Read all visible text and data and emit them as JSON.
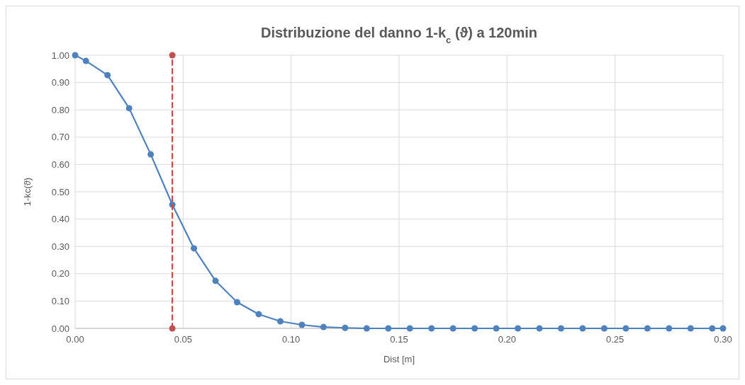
{
  "chart_data": {
    "type": "line",
    "title": "Distribuzione del danno 1-k$_{c}$ (ϑ) a 120min",
    "xlabel": "Dist [m]",
    "ylabel": "1-kc(ϑ)",
    "xlim": [
      0,
      0.3
    ],
    "xticks": [
      {
        "value": 0,
        "label": "0.00"
      },
      {
        "value": 0.05,
        "label": "0.05"
      },
      {
        "value": 0.1,
        "label": "0.10"
      },
      {
        "value": 0.15,
        "label": "0.15"
      },
      {
        "value": 0.2,
        "label": "0.20"
      },
      {
        "value": 0.25,
        "label": "0.25"
      },
      {
        "value": 0.3,
        "label": "0.30"
      }
    ],
    "ylim": [
      0,
      1
    ],
    "yticks": [
      {
        "value": 0,
        "label": "0.00"
      },
      {
        "value": 0.1,
        "label": "0.10"
      },
      {
        "value": 0.2,
        "label": "0.20"
      },
      {
        "value": 0.3,
        "label": "0.30"
      },
      {
        "value": 0.4,
        "label": "0.40"
      },
      {
        "value": 0.5,
        "label": "0.50"
      },
      {
        "value": 0.6,
        "label": "0.60"
      },
      {
        "value": 0.7,
        "label": "0.70"
      },
      {
        "value": 0.8,
        "label": "0.80"
      },
      {
        "value": 0.9,
        "label": "0.90"
      },
      {
        "value": 1,
        "label": "1.00"
      }
    ],
    "grid": true,
    "marker": "circle",
    "series": [
      {
        "color": "#4f81bd",
        "line_style": "solid",
        "x": [
          0,
          0.005,
          0.015,
          0.025,
          0.035,
          0.045,
          0.055,
          0.065,
          0.075,
          0.085,
          0.095,
          0.105,
          0.115,
          0.125,
          0.135,
          0.145,
          0.155,
          0.165,
          0.175,
          0.185,
          0.195,
          0.205,
          0.215,
          0.225,
          0.235,
          0.245,
          0.255,
          0.265,
          0.275,
          0.285,
          0.295,
          0.3
        ],
        "values": [
          1,
          0.979,
          0.927,
          0.806,
          0.637,
          0.453,
          0.293,
          0.174,
          0.096,
          0.052,
          0.026,
          0.013,
          0.005,
          0.002,
          0,
          0,
          0,
          0,
          0,
          0,
          0,
          0,
          0,
          0,
          0,
          0,
          0,
          0,
          0,
          0,
          0,
          0
        ]
      },
      {
        "color": "#c0504d",
        "line_style": "dashed",
        "x": [
          0.045,
          0.045
        ],
        "values": [
          0,
          1
        ]
      }
    ]
  }
}
